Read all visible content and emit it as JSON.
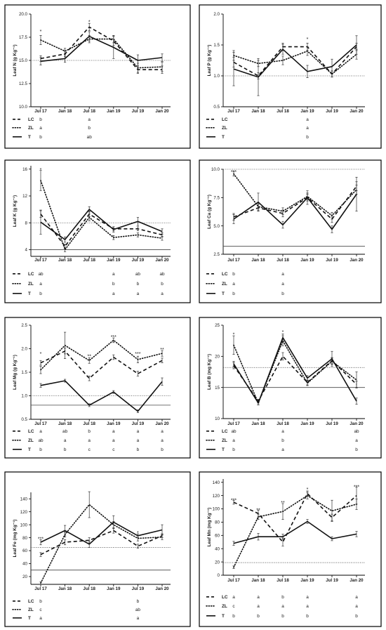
{
  "chart_data": [
    {
      "type": "line",
      "ylabel": "Leaf N (g Kg⁻¹)",
      "x": [
        "Jul 17",
        "Jan 18",
        "Jul 18",
        "Jan 19",
        "Jul 19",
        "Jan 20"
      ],
      "ylim": [
        10,
        20
      ],
      "yticks": [
        10,
        12.5,
        15,
        17.5,
        20
      ],
      "ytick_labels": [
        "10.0",
        "12.5",
        "15.0",
        "17.5",
        "20.0"
      ],
      "reference_lines": [
        {
          "value": 15.0,
          "style": "dotted"
        }
      ],
      "series": [
        {
          "name": "LC",
          "style": "dashed",
          "values": [
            15.2,
            15.7,
            18.6,
            17.1,
            14.0,
            14.0
          ],
          "err": [
            0.3,
            0.3,
            0.4,
            0.5,
            0.4,
            0.4
          ],
          "letters": [
            "b",
            "",
            "a",
            "",
            "",
            ""
          ]
        },
        {
          "name": "ZL",
          "style": "dotted",
          "values": [
            17.2,
            16.0,
            17.3,
            17.3,
            14.2,
            14.3
          ],
          "err": [
            0.5,
            0.3,
            0.4,
            0.4,
            0.5,
            0.5
          ],
          "letters": [
            "a",
            "",
            "b",
            "",
            "",
            ""
          ]
        },
        {
          "name": "T",
          "style": "solid",
          "values": [
            14.9,
            15.2,
            17.6,
            16.4,
            15.0,
            15.3
          ],
          "err": [
            0.4,
            0.4,
            0.5,
            1.2,
            0.6,
            0.4
          ],
          "letters": [
            "b",
            "",
            "ab",
            "",
            "",
            ""
          ]
        }
      ],
      "annotations": [
        {
          "x": "Jul 17",
          "y": 18.2,
          "text": "*"
        },
        {
          "x": "Jul 18",
          "y": 19.2,
          "text": "*"
        }
      ]
    },
    {
      "type": "line",
      "ylabel": "Leaf P (g Kg⁻¹)",
      "x": [
        "Jul 17",
        "Jan 18",
        "Jul 18",
        "Jan 19",
        "Jul 19",
        "Jan 20"
      ],
      "ylim": [
        0.5,
        2.0
      ],
      "yticks": [
        0.5,
        1.0,
        1.5,
        2.0
      ],
      "ytick_labels": [
        "0.5",
        "1.0",
        "1.5",
        "2.0"
      ],
      "reference_lines": [
        {
          "value": 1.0,
          "style": "dotted"
        }
      ],
      "series": [
        {
          "name": "LC",
          "style": "dashed",
          "values": [
            1.22,
            1.0,
            1.47,
            1.47,
            1.03,
            1.47
          ],
          "err": [
            0.08,
            0.05,
            0.06,
            0.06,
            0.05,
            0.06
          ],
          "letters": [
            "",
            "",
            "",
            "a",
            "",
            ""
          ]
        },
        {
          "name": "ZL",
          "style": "dotted",
          "values": [
            1.33,
            1.2,
            1.25,
            1.4,
            1.03,
            1.35
          ],
          "err": [
            0.08,
            0.05,
            0.07,
            0.07,
            0.05,
            0.08
          ],
          "letters": [
            "",
            "",
            "",
            "a",
            "",
            ""
          ]
        },
        {
          "name": "T",
          "style": "solid",
          "values": [
            1.11,
            0.98,
            1.43,
            1.07,
            1.15,
            1.5
          ],
          "err": [
            0.27,
            0.3,
            0.08,
            0.1,
            0.12,
            0.15
          ],
          "letters": [
            "",
            "",
            "",
            "b",
            "",
            ""
          ]
        }
      ],
      "annotations": [
        {
          "x": "Jan 19",
          "y": 1.6,
          "text": "*"
        }
      ]
    },
    {
      "type": "line",
      "ylabel": "Leaf K (g Kg⁻¹)",
      "x": [
        "Jul 17",
        "Jan 18",
        "Jul 18",
        "Jan 19",
        "Jul 19",
        "Jan 20"
      ],
      "ylim": [
        3,
        16.5
      ],
      "yticks": [
        4,
        8,
        12,
        16
      ],
      "ytick_labels": [
        "4",
        "8",
        "12",
        "16"
      ],
      "reference_lines": [
        {
          "value": 8,
          "style": "dotted"
        },
        {
          "value": 4,
          "style": "solid"
        }
      ],
      "series": [
        {
          "name": "LC",
          "style": "dashed",
          "values": [
            9.3,
            4.5,
            9.3,
            7.1,
            7.1,
            6.2
          ],
          "err": [
            0.5,
            0.3,
            0.4,
            0.3,
            0.3,
            0.3
          ],
          "letters": [
            "ab",
            "",
            "",
            "a",
            "ab",
            "ab"
          ]
        },
        {
          "name": "ZL",
          "style": "dotted",
          "values": [
            14.3,
            4.0,
            8.8,
            5.8,
            6.2,
            5.7
          ],
          "err": [
            1.5,
            0.3,
            0.5,
            0.3,
            0.3,
            0.3
          ],
          "letters": [
            "a",
            "",
            "",
            "b",
            "b",
            "b"
          ]
        },
        {
          "name": "T",
          "style": "solid",
          "values": [
            8.1,
            5.5,
            10.0,
            7.0,
            8.2,
            6.7
          ],
          "err": [
            1.8,
            0.4,
            0.4,
            0.4,
            0.6,
            0.4
          ],
          "letters": [
            "b",
            "",
            "",
            "a",
            "a",
            "a"
          ]
        }
      ],
      "annotations": [
        {
          "x": "Jul 17",
          "y": 16.0,
          "text": "*"
        }
      ]
    },
    {
      "type": "line",
      "ylabel": "Leaf Ca (g Kg⁻¹)",
      "x": [
        "Jul 17",
        "Jan 18",
        "Jul 18",
        "Jan 19",
        "Jul 19",
        "Jan 20"
      ],
      "ylim": [
        2.5,
        10
      ],
      "yticks": [
        2.5,
        5.0,
        7.5,
        10.0
      ],
      "ytick_labels": [
        "2.5",
        "5.0",
        "7.5",
        "10.0"
      ],
      "reference_lines": [
        {
          "value": 10.0,
          "style": "dotted"
        },
        {
          "value": 3.2,
          "style": "solid"
        }
      ],
      "series": [
        {
          "name": "LC",
          "style": "dashed",
          "values": [
            5.8,
            6.6,
            6.1,
            7.5,
            5.6,
            8.5
          ],
          "err": [
            0.3,
            0.3,
            0.3,
            0.3,
            0.3,
            0.4
          ],
          "letters": [
            "b",
            "",
            "a",
            "",
            "",
            ""
          ]
        },
        {
          "name": "ZL",
          "style": "dotted",
          "values": [
            9.6,
            6.7,
            6.3,
            7.6,
            5.9,
            8.2
          ],
          "err": [
            0.2,
            0.3,
            0.3,
            0.3,
            0.3,
            0.4
          ],
          "letters": [
            "a",
            "",
            "a",
            "",
            "",
            ""
          ]
        },
        {
          "name": "T",
          "style": "solid",
          "values": [
            5.6,
            7.1,
            5.1,
            7.5,
            4.7,
            7.8
          ],
          "err": [
            0.4,
            0.8,
            0.3,
            0.6,
            0.3,
            1.5
          ],
          "letters": [
            "b",
            "",
            "b",
            "",
            "",
            ""
          ]
        }
      ],
      "annotations": [
        {
          "x": "Jul 17",
          "y": 9.8,
          "text": "***"
        }
      ]
    },
    {
      "type": "line",
      "ylabel": "Leaf Mg (g Kg⁻¹)",
      "x": [
        "Jul 17",
        "Jan 18",
        "Jul 18",
        "Jan 19",
        "Jul 19",
        "Jan 20"
      ],
      "ylim": [
        0.5,
        2.5
      ],
      "yticks": [
        0.5,
        1.0,
        1.5,
        2.0,
        2.5
      ],
      "ytick_labels": [
        "0.5",
        "1.0",
        "1.5",
        "2.0",
        "2.5"
      ],
      "reference_lines": [
        {
          "value": 1.0,
          "style": "dotted"
        },
        {
          "value": 0.8,
          "style": "solid"
        }
      ],
      "series": [
        {
          "name": "LC",
          "style": "dashed",
          "values": [
            1.7,
            1.95,
            1.37,
            1.82,
            1.47,
            1.75
          ],
          "err": [
            0.05,
            0.06,
            0.05,
            0.05,
            0.05,
            0.05
          ],
          "letters": [
            "a",
            "ab",
            "b",
            "a",
            "a",
            "a"
          ]
        },
        {
          "name": "ZL",
          "style": "dotted",
          "values": [
            1.55,
            2.07,
            1.75,
            2.18,
            1.77,
            1.9
          ],
          "err": [
            0.08,
            0.28,
            0.06,
            0.05,
            0.07,
            0.06
          ],
          "letters": [
            "ab",
            "a",
            "a",
            "a",
            "a",
            "a"
          ]
        },
        {
          "name": "T",
          "style": "solid",
          "values": [
            1.22,
            1.32,
            0.8,
            1.08,
            0.67,
            1.3
          ],
          "err": [
            0.04,
            0.03,
            0.03,
            0.03,
            0.03,
            0.08
          ],
          "letters": [
            "b",
            "b",
            "c",
            "c",
            "b",
            "b"
          ]
        }
      ],
      "annotations": [
        {
          "x": "Jul 17",
          "y": 1.9,
          "text": "*"
        },
        {
          "x": "Jul 18",
          "y": 1.85,
          "text": "**"
        },
        {
          "x": "Jan 19",
          "y": 2.26,
          "text": "***"
        },
        {
          "x": "Jul 19",
          "y": 1.9,
          "text": "***"
        },
        {
          "x": "Jan 20",
          "y": 1.99,
          "text": "**"
        }
      ]
    },
    {
      "type": "line",
      "ylabel": "Leaf B (mg Kg⁻¹)",
      "x": [
        "Jul 17",
        "Jan 18",
        "Jul 18",
        "Jan 19",
        "Jul 19",
        "Jan 20"
      ],
      "ylim": [
        10,
        25
      ],
      "yticks": [
        10,
        15,
        20,
        25
      ],
      "ytick_labels": [
        "10",
        "15",
        "20",
        "25"
      ],
      "reference_lines": [
        {
          "value": 18.2,
          "style": "dotted"
        },
        {
          "value": 15,
          "style": "solid"
        }
      ],
      "series": [
        {
          "name": "LC",
          "style": "dashed",
          "values": [
            18.5,
            12.8,
            20.0,
            15.8,
            19.3,
            15.5
          ],
          "err": [
            0.5,
            0.3,
            0.6,
            0.4,
            0.5,
            0.5
          ],
          "letters": [
            "ab",
            "",
            "a",
            "",
            "",
            "ab"
          ]
        },
        {
          "name": "ZL",
          "style": "dotted",
          "values": [
            21.8,
            12.5,
            22.5,
            15.7,
            19.2,
            16.2
          ],
          "err": [
            1.5,
            0.3,
            0.8,
            0.4,
            0.5,
            1.3
          ],
          "letters": [
            "a",
            "",
            "b",
            "",
            "",
            "a"
          ]
        },
        {
          "name": "T",
          "style": "solid",
          "values": [
            18.8,
            12.5,
            23.0,
            16.5,
            19.6,
            12.8
          ],
          "err": [
            0.4,
            0.3,
            0.6,
            0.4,
            1.2,
            0.5
          ],
          "letters": [
            "b",
            "",
            "a",
            "",
            "",
            "b"
          ]
        }
      ],
      "annotations": [
        {
          "x": "Jul 17",
          "y": 23.6,
          "text": "*"
        },
        {
          "x": "Jul 18",
          "y": 24.0,
          "text": "*"
        }
      ]
    },
    {
      "type": "line",
      "ylabel": "Leaf Fe (mg Kg⁻¹)",
      "x": [
        "Jul 17",
        "Jan 18",
        "Jul 18",
        "Jan 19",
        "Jul 19",
        "Jan 20"
      ],
      "ylim": [
        8,
        150
      ],
      "yticks": [
        20,
        40,
        60,
        80,
        100,
        120,
        140
      ],
      "ytick_labels": [
        "20",
        "40",
        "60",
        "80",
        "100",
        "120",
        "140"
      ],
      "reference_lines": [
        {
          "value": 65,
          "style": "dotted"
        },
        {
          "value": 30,
          "style": "solid"
        }
      ],
      "series": [
        {
          "name": "LC",
          "style": "dashed",
          "values": [
            54,
            73,
            76,
            91,
            67,
            83
          ],
          "err": [
            3,
            4,
            4,
            4,
            3,
            3
          ],
          "letters": [
            "b",
            "",
            "",
            "",
            "b",
            ""
          ]
        },
        {
          "name": "ZL",
          "style": "dotted",
          "values": [
            10,
            85,
            131,
            100,
            79,
            81
          ],
          "err": [
            2,
            4,
            20,
            5,
            4,
            4
          ],
          "letters": [
            "c",
            "",
            "",
            "",
            "ab",
            ""
          ]
        },
        {
          "name": "T",
          "style": "solid",
          "values": [
            73,
            91,
            70,
            104,
            83,
            92
          ],
          "err": [
            4,
            8,
            5,
            10,
            3,
            8
          ],
          "letters": [
            "a",
            "",
            "",
            "",
            "a",
            ""
          ]
        }
      ],
      "annotations": [
        {
          "x": "Jul 17",
          "y": 79,
          "text": "***"
        },
        {
          "x": "Jul 19",
          "y": 88,
          "text": "*"
        }
      ]
    },
    {
      "type": "line",
      "ylabel": "Leaf Mn (mg Kg⁻¹)",
      "x": [
        "Jul 17",
        "Jan 18",
        "Jul 18",
        "Jan 19",
        "Jul 19",
        "Jan 20"
      ],
      "ylim": [
        0,
        145
      ],
      "yticks": [
        0,
        20,
        40,
        60,
        80,
        100,
        120,
        140
      ],
      "ytick_labels": [
        "0",
        "20",
        "40",
        "60",
        "80",
        "100",
        "120",
        "140"
      ],
      "reference_lines": [
        {
          "value": 19,
          "style": "dotted"
        }
      ],
      "series": [
        {
          "name": "LC",
          "style": "dashed",
          "values": [
            110,
            93,
            50,
            123,
            87,
            120
          ],
          "err": [
            3,
            5,
            6,
            4,
            5,
            13
          ],
          "letters": [
            "a",
            "a",
            "b",
            "a",
            "",
            "a"
          ]
        },
        {
          "name": "ZL",
          "style": "dotted",
          "values": [
            12,
            88,
            96,
            120,
            97,
            107
          ],
          "err": [
            2,
            4,
            12,
            5,
            16,
            8
          ],
          "letters": [
            "c",
            "a",
            "a",
            "a",
            "",
            "a"
          ]
        },
        {
          "name": "T",
          "style": "solid",
          "values": [
            48,
            58,
            58,
            81,
            55,
            62
          ],
          "err": [
            3,
            5,
            4,
            3,
            3,
            4
          ],
          "letters": [
            "b",
            "b",
            "b",
            "b",
            "",
            "b"
          ]
        }
      ],
      "annotations": [
        {
          "x": "Jul 17",
          "y": 114,
          "text": "***"
        },
        {
          "x": "Jan 18",
          "y": 99,
          "text": "**"
        },
        {
          "x": "Jul 18",
          "y": 110,
          "text": "**"
        },
        {
          "x": "Jan 19",
          "y": 130,
          "text": "*"
        },
        {
          "x": "Jan 20",
          "y": 134,
          "text": "***"
        }
      ]
    }
  ]
}
